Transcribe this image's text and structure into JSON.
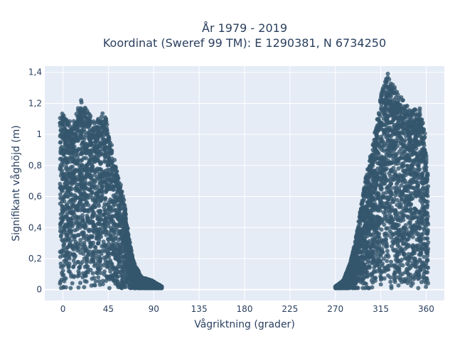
{
  "chart_data": {
    "type": "scatter",
    "title_line1": "År 1979 - 2019",
    "title_line2": "Koordinat (Sweref 99 TM): E 1290381, N 6734250",
    "xlabel": "Vågriktning (grader)",
    "ylabel": "Signifikant våghöjd (m)",
    "xlim": [
      -18,
      378
    ],
    "ylim": [
      -0.07,
      1.44
    ],
    "x_ticks": [
      0,
      45,
      90,
      135,
      180,
      225,
      270,
      315,
      360
    ],
    "x_tick_labels": [
      "0",
      "45",
      "90",
      "135",
      "180",
      "225",
      "270",
      "315",
      "360"
    ],
    "y_ticks": [
      0,
      0.2,
      0.4,
      0.6,
      0.8,
      1,
      1.2,
      1.4
    ],
    "y_tick_labels": [
      "0",
      "0,2",
      "0,4",
      "0,6",
      "0,8",
      "1",
      "1,2",
      "1,4"
    ],
    "grid": true,
    "legend": "none",
    "marker_color": "#34566d",
    "plot_background": "#e5ecf6",
    "clusters": [
      {
        "name": "",
        "x_range": [
          -3,
          98
        ],
        "envelope": [
          [
            -3,
            1.15
          ],
          [
            2,
            1.12
          ],
          [
            10,
            1.08
          ],
          [
            18,
            1.22
          ],
          [
            25,
            1.14
          ],
          [
            32,
            1.08
          ],
          [
            40,
            1.16
          ],
          [
            45,
            1.05
          ],
          [
            50,
            0.88
          ],
          [
            55,
            0.72
          ],
          [
            60,
            0.62
          ],
          [
            63,
            0.45
          ],
          [
            66,
            0.32
          ],
          [
            70,
            0.18
          ],
          [
            78,
            0.08
          ],
          [
            88,
            0.06
          ],
          [
            98,
            0.02
          ]
        ],
        "max_y": 1.22
      },
      {
        "name": "",
        "x_range": [
          270,
          362
        ],
        "envelope": [
          [
            270,
            0.02
          ],
          [
            278,
            0.06
          ],
          [
            285,
            0.18
          ],
          [
            290,
            0.32
          ],
          [
            295,
            0.52
          ],
          [
            300,
            0.72
          ],
          [
            305,
            0.88
          ],
          [
            310,
            1.05
          ],
          [
            315,
            1.25
          ],
          [
            318,
            1.35
          ],
          [
            322,
            1.38
          ],
          [
            328,
            1.32
          ],
          [
            335,
            1.25
          ],
          [
            345,
            1.15
          ],
          [
            355,
            1.18
          ],
          [
            359,
            1.0
          ],
          [
            362,
            0.72
          ]
        ],
        "max_y": 1.39
      }
    ]
  }
}
